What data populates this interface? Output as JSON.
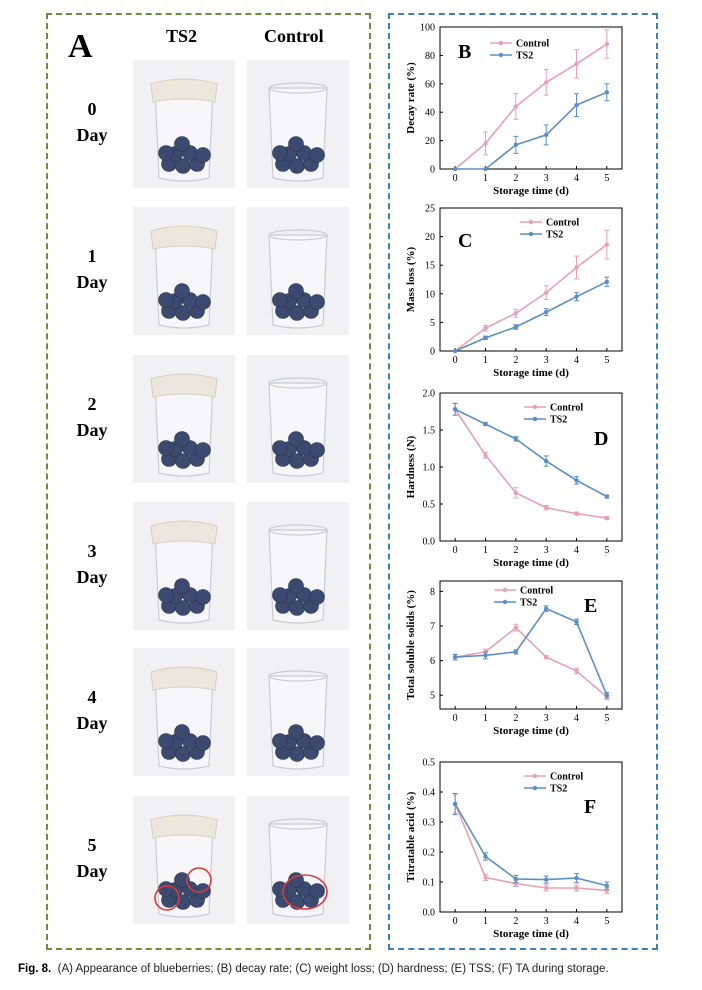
{
  "figure": {
    "panel_a_label": "A",
    "col_ts2": "TS2",
    "col_control": "Control",
    "day_word": "Day",
    "days": [
      "0",
      "1",
      "2",
      "3",
      "4",
      "5"
    ],
    "caption_label": "Fig. 8.",
    "caption_text": "(A) Appearance of blueberries; (B) decay rate; (C) weight loss; (D) hardness; (E) TSS; (F) TA during storage."
  },
  "colors": {
    "control": "#e8a0b4",
    "ts2": "#5b8ec6",
    "frame_a": "#6b8e3a",
    "frame_r": "#3f7fb5",
    "circle": "#d83a3a"
  },
  "chart_data": [
    {
      "id": "B",
      "type": "line",
      "panel_label": "B",
      "xlabel": "Storage time (d)",
      "ylabel": "Decay rate (%)",
      "x": [
        0,
        1,
        2,
        3,
        4,
        5
      ],
      "ylim": [
        0,
        100
      ],
      "yticks": [
        0,
        20,
        40,
        60,
        80,
        100
      ],
      "legend": "top-left",
      "series": [
        {
          "name": "Control",
          "values": [
            0,
            18,
            44,
            61,
            74,
            88
          ],
          "errors": [
            0,
            8,
            9,
            9,
            10,
            10
          ]
        },
        {
          "name": "TS2",
          "values": [
            0,
            0,
            17,
            24,
            45,
            54
          ],
          "errors": [
            0,
            0,
            6,
            7,
            8,
            6
          ]
        }
      ]
    },
    {
      "id": "C",
      "type": "line",
      "panel_label": "C",
      "xlabel": "Storage time (d)",
      "ylabel": "Mass loss (%)",
      "x": [
        0,
        1,
        2,
        3,
        4,
        5
      ],
      "ylim": [
        0,
        25
      ],
      "yticks": [
        0,
        5,
        10,
        15,
        20,
        25
      ],
      "legend": "top-center",
      "series": [
        {
          "name": "Control",
          "values": [
            0,
            4,
            6.6,
            10.2,
            14.6,
            18.6
          ],
          "errors": [
            0,
            0.5,
            0.7,
            1.2,
            2.0,
            2.5
          ]
        },
        {
          "name": "TS2",
          "values": [
            0,
            2.3,
            4.2,
            6.8,
            9.5,
            12.1
          ],
          "errors": [
            0,
            0.3,
            0.4,
            0.6,
            0.7,
            0.8
          ]
        }
      ]
    },
    {
      "id": "D",
      "type": "line",
      "panel_label": "D",
      "xlabel": "Storage time (d)",
      "ylabel": "Hardness (N)",
      "x": [
        0,
        1,
        2,
        3,
        4,
        5
      ],
      "ylim": [
        0,
        2.0
      ],
      "yticks": [
        0.0,
        0.5,
        1.0,
        1.5,
        2.0
      ],
      "legend": "top-center",
      "series": [
        {
          "name": "Control",
          "values": [
            1.78,
            1.16,
            0.65,
            0.45,
            0.37,
            0.31
          ],
          "errors": [
            0.08,
            0.04,
            0.07,
            0.03,
            0.02,
            0.02
          ]
        },
        {
          "name": "TS2",
          "values": [
            1.78,
            1.58,
            1.38,
            1.08,
            0.82,
            0.6
          ],
          "errors": [
            0.08,
            0.02,
            0.03,
            0.07,
            0.05,
            0.02
          ]
        }
      ]
    },
    {
      "id": "E",
      "type": "line",
      "panel_label": "E",
      "xlabel": "Storage time (d)",
      "ylabel": "Total soluble solids (%)",
      "x": [
        0,
        1,
        2,
        3,
        4,
        5
      ],
      "ylim": [
        4.6,
        8.3
      ],
      "yticks": [
        5,
        6,
        7,
        8
      ],
      "legend": "top-left",
      "series": [
        {
          "name": "Control",
          "values": [
            6.1,
            6.25,
            6.95,
            6.1,
            5.7,
            4.95
          ],
          "errors": [
            0.08,
            0.08,
            0.1,
            0.05,
            0.08,
            0.08
          ]
        },
        {
          "name": "TS2",
          "values": [
            6.1,
            6.15,
            6.25,
            7.5,
            7.12,
            5.0
          ],
          "errors": [
            0.08,
            0.1,
            0.06,
            0.08,
            0.08,
            0.08
          ]
        }
      ]
    },
    {
      "id": "F",
      "type": "line",
      "panel_label": "F",
      "xlabel": "Storage time (d)",
      "ylabel": "Titratable acid (%)",
      "x": [
        0,
        1,
        2,
        3,
        4,
        5
      ],
      "ylim": [
        0,
        0.5
      ],
      "yticks": [
        0.0,
        0.1,
        0.2,
        0.3,
        0.4,
        0.5
      ],
      "legend": "top-center",
      "series": [
        {
          "name": "Control",
          "values": [
            0.36,
            0.115,
            0.095,
            0.08,
            0.08,
            0.072
          ],
          "errors": [
            0.03,
            0.01,
            0.01,
            0.01,
            0.01,
            0.01
          ]
        },
        {
          "name": "TS2",
          "values": [
            0.36,
            0.185,
            0.11,
            0.108,
            0.113,
            0.088
          ],
          "errors": [
            0.035,
            0.012,
            0.012,
            0.012,
            0.015,
            0.012
          ]
        }
      ]
    }
  ]
}
